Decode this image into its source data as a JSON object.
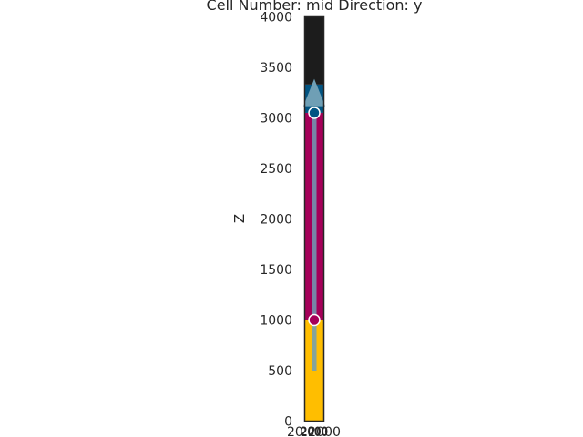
{
  "chart_data": {
    "type": "area",
    "title": "Cell Number: mid Direction: y",
    "xlabel": "",
    "ylabel": "Z",
    "ylim": [
      0,
      4000
    ],
    "y_ticks": [
      "0",
      "500",
      "1000",
      "1500",
      "2000",
      "2500",
      "3000",
      "3500",
      "4000"
    ],
    "x_tick_text": "2000",
    "x_tick_partial": "20",
    "grid": false,
    "layers": [
      {
        "z_bottom": 0,
        "z_top": 1000,
        "color": "#ffbe00"
      },
      {
        "z_bottom": 1000,
        "z_top": 3050,
        "color": "#a50059"
      },
      {
        "z_bottom": 3050,
        "z_top": 3330,
        "color": "#015482"
      },
      {
        "z_bottom": 3330,
        "z_top": 4000,
        "color": "#1c1c1c"
      }
    ],
    "surface_points": [
      {
        "z": 1000,
        "color": "#a50059"
      },
      {
        "z": 3050,
        "color": "#015482"
      }
    ],
    "orientation_arrow": {
      "z_start": 500,
      "z_end": 3350,
      "color": "#6f9fb5"
    }
  }
}
